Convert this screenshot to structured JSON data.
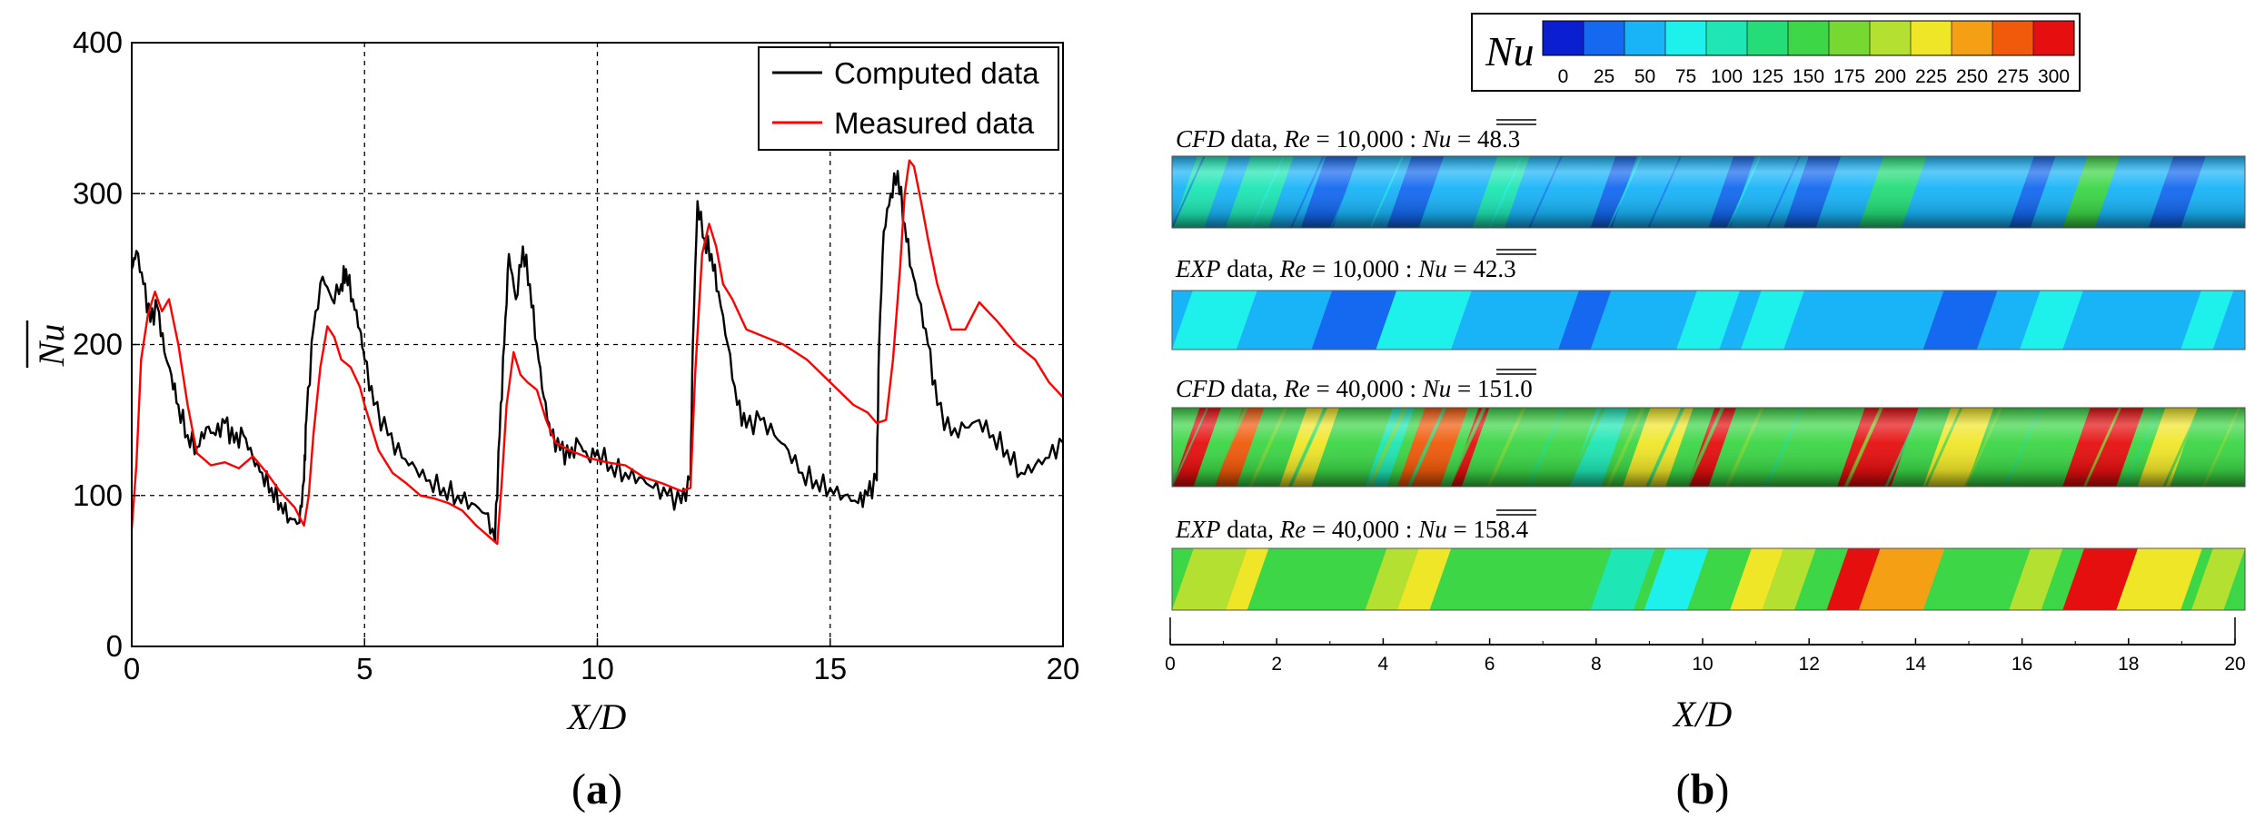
{
  "panels": [
    {
      "label": "a",
      "chart_data": {
        "type": "line",
        "title": "",
        "xlabel": "X/D",
        "ylabel": "Nu",
        "xlim": [
          0,
          20
        ],
        "ylim": [
          0,
          400
        ],
        "xticks": [
          0,
          5,
          10,
          15,
          20
        ],
        "yticks": [
          0,
          100,
          200,
          300,
          400
        ],
        "grid": true,
        "legend_position": "top-right",
        "series": [
          {
            "name": "Computed data",
            "color": "#000000",
            "x": [
              0,
              0.1,
              0.25,
              0.4,
              0.55,
              0.7,
              0.85,
              1.0,
              1.2,
              1.4,
              1.6,
              1.8,
              2.0,
              2.2,
              2.4,
              2.6,
              2.8,
              3.0,
              3.2,
              3.4,
              3.6,
              3.7,
              3.75,
              3.9,
              4.1,
              4.3,
              4.5,
              4.6,
              4.75,
              4.9,
              5.0,
              5.2,
              5.5,
              5.8,
              6.1,
              6.4,
              6.7,
              7.0,
              7.3,
              7.6,
              7.8,
              7.9,
              8.0,
              8.1,
              8.25,
              8.4,
              8.55,
              8.7,
              8.85,
              9.0,
              9.2,
              9.4,
              9.6,
              9.8,
              10.0,
              10.3,
              10.6,
              10.9,
              11.2,
              11.5,
              11.8,
              12.0,
              12.05,
              12.15,
              12.3,
              12.45,
              12.6,
              12.8,
              13.0,
              13.2,
              13.5,
              13.8,
              14.1,
              14.4,
              14.7,
              15.0,
              15.3,
              15.6,
              15.8,
              16.0,
              16.05,
              16.15,
              16.3,
              16.45,
              16.6,
              16.75,
              16.9,
              17.1,
              17.3,
              17.6,
              17.9,
              18.2,
              18.5,
              18.8,
              19.1,
              19.4,
              19.7,
              20.0
            ],
            "values": [
              250,
              262,
              240,
              215,
              225,
              195,
              180,
              160,
              140,
              132,
              145,
              140,
              148,
              135,
              140,
              125,
              115,
              105,
              95,
              85,
              82,
              110,
              150,
              210,
              245,
              230,
              240,
              250,
              230,
              210,
              190,
              160,
              140,
              125,
              118,
              110,
              105,
              100,
              95,
              88,
              70,
              140,
              200,
              260,
              230,
              265,
              240,
              200,
              165,
              140,
              130,
              125,
              135,
              125,
              130,
              120,
              115,
              112,
              105,
              100,
              95,
              110,
              200,
              295,
              270,
              260,
              235,
              200,
              160,
              145,
              150,
              140,
              130,
              115,
              110,
              105,
              100,
              95,
              100,
              110,
              200,
              275,
              300,
              315,
              280,
              250,
              230,
              200,
              160,
              140,
              145,
              150,
              140,
              130,
              115,
              120,
              125,
              135
            ]
          },
          {
            "name": "Measured data",
            "color": "#ff0000",
            "x": [
              0,
              0.1,
              0.2,
              0.35,
              0.5,
              0.65,
              0.8,
              1.0,
              1.2,
              1.4,
              1.7,
              2.0,
              2.3,
              2.6,
              2.9,
              3.2,
              3.5,
              3.7,
              3.8,
              3.9,
              4.05,
              4.2,
              4.35,
              4.5,
              4.7,
              4.9,
              5.0,
              5.3,
              5.6,
              5.9,
              6.2,
              6.5,
              6.8,
              7.1,
              7.4,
              7.7,
              7.85,
              7.95,
              8.05,
              8.2,
              8.35,
              8.5,
              8.7,
              8.9,
              9.1,
              9.4,
              9.8,
              10.2,
              10.6,
              11.0,
              11.4,
              11.8,
              12.0,
              12.1,
              12.25,
              12.4,
              12.55,
              12.7,
              12.9,
              13.2,
              13.6,
              14.0,
              14.5,
              15.0,
              15.5,
              15.8,
              16.0,
              16.2,
              16.35,
              16.5,
              16.6,
              16.7,
              16.8,
              16.95,
              17.1,
              17.3,
              17.6,
              17.9,
              18.2,
              18.6,
              19.0,
              19.4,
              19.7,
              20.0
            ],
            "values": [
              78,
              120,
              190,
              220,
              235,
              222,
              230,
              200,
              160,
              128,
              120,
              122,
              118,
              126,
              115,
              102,
              92,
              80,
              100,
              140,
              185,
              212,
              205,
              190,
              185,
              172,
              160,
              130,
              115,
              108,
              100,
              98,
              95,
              90,
              80,
              72,
              68,
              110,
              160,
              195,
              180,
              175,
              170,
              150,
              135,
              130,
              125,
              122,
              120,
              112,
              108,
              103,
              105,
              180,
              260,
              280,
              265,
              240,
              230,
              210,
              205,
              200,
              190,
              175,
              160,
              155,
              148,
              150,
              190,
              250,
              300,
              322,
              318,
              295,
              270,
              240,
              210,
              210,
              228,
              215,
              200,
              190,
              175,
              165
            ]
          }
        ]
      }
    },
    {
      "label": "b",
      "chart_data": {
        "type": "heatmap",
        "xlabel": "X/D",
        "xlim": [
          0,
          20
        ],
        "xticks": [
          0,
          2,
          4,
          6,
          8,
          10,
          12,
          14,
          16,
          18,
          20
        ],
        "colorbar": {
          "title": "Nu",
          "ticks": [
            0,
            25,
            50,
            75,
            100,
            125,
            150,
            175,
            200,
            225,
            250,
            275,
            300
          ],
          "colors": [
            "#0a1fd0",
            "#1469f0",
            "#19b4f8",
            "#1ef0ec",
            "#1ee6b4",
            "#24dc78",
            "#3cd646",
            "#78d832",
            "#b4e032",
            "#f0e628",
            "#f5a014",
            "#f05a0a",
            "#e60f0f"
          ]
        },
        "strips": [
          {
            "source": "CFD",
            "re": "10,000",
            "mean_nu": "48.3"
          },
          {
            "source": "EXP",
            "re": "10,000",
            "mean_nu": "42.3"
          },
          {
            "source": "CFD",
            "re": "40,000",
            "mean_nu": "151.0"
          },
          {
            "source": "EXP",
            "re": "40,000",
            "mean_nu": "158.4"
          }
        ]
      }
    }
  ],
  "text": {
    "label_a": "(a)",
    "label_b": "(b)",
    "data_word": "data,",
    "re_symbol": "Re",
    "eq_sign": "=",
    "colon": ":",
    "nu_symbol": "Nu"
  }
}
